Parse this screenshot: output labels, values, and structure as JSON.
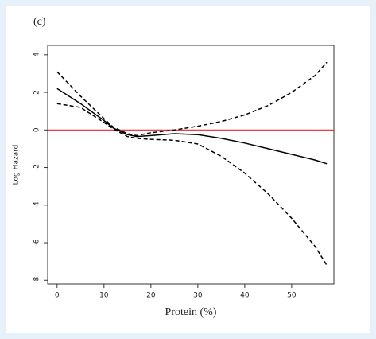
{
  "chart_data": {
    "type": "line",
    "title": "(c)",
    "xlabel": "Protein (%)",
    "ylabel": "Log Hazard",
    "x": [
      0,
      5,
      10,
      12,
      15,
      17,
      20,
      25,
      30,
      35,
      40,
      45,
      50,
      55,
      57.5
    ],
    "series": [
      {
        "color": "#000000",
        "style": "solid",
        "values": [
          2.2,
          1.4,
          0.5,
          0.1,
          -0.25,
          -0.35,
          -0.3,
          -0.2,
          -0.25,
          -0.45,
          -0.7,
          -1.0,
          -1.3,
          -1.6,
          -1.8
        ]
      },
      {
        "color": "#000000",
        "style": "dashed",
        "values": [
          3.1,
          1.8,
          0.6,
          0.15,
          -0.2,
          -0.3,
          -0.15,
          0,
          0.2,
          0.45,
          0.8,
          1.3,
          2.0,
          2.9,
          3.6
        ]
      },
      {
        "color": "#000000",
        "style": "dashed",
        "values": [
          1.4,
          1.2,
          0.4,
          0.05,
          -0.35,
          -0.45,
          -0.5,
          -0.55,
          -0.75,
          -1.4,
          -2.3,
          -3.4,
          -4.7,
          -6.2,
          -7.2
        ]
      }
    ],
    "reference_line": {
      "value": 0,
      "color": "#e8262a"
    },
    "xlim": [
      -2,
      59
    ],
    "ylim": [
      -8.2,
      4.5
    ],
    "xticks": [
      0,
      10,
      20,
      30,
      40,
      50
    ],
    "yticks": [
      4,
      2,
      0,
      -2,
      -4,
      -6,
      -8
    ]
  }
}
